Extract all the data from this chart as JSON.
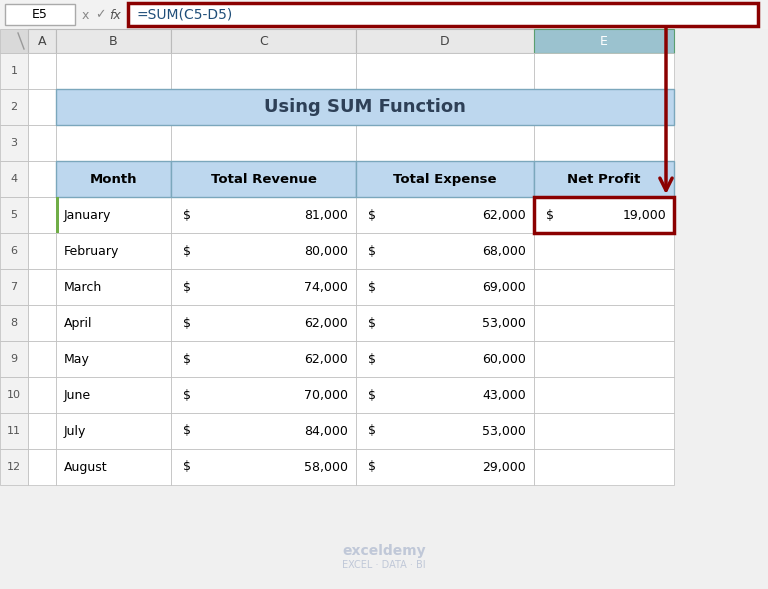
{
  "title": "Using SUM Function",
  "formula_bar_cell": "E5",
  "formula_bar_formula": "=SUM(C5-D5)",
  "headers": [
    "Month",
    "Total Revenue",
    "Total Expense",
    "Net Profit"
  ],
  "months": [
    "January",
    "February",
    "March",
    "April",
    "May",
    "June",
    "July",
    "August"
  ],
  "revenues": [
    "$",
    "$",
    "$",
    "$",
    "$",
    "$",
    "$",
    "$"
  ],
  "revenue_nums": [
    "81,000",
    "80,000",
    "74,000",
    "62,000",
    "62,000",
    "70,000",
    "84,000",
    "58,000"
  ],
  "expenses": [
    "$",
    "$",
    "$",
    "$",
    "$",
    "$",
    "$",
    "$"
  ],
  "expense_nums": [
    "62,000",
    "68,000",
    "69,000",
    "53,000",
    "60,000",
    "43,000",
    "53,000",
    "29,000"
  ],
  "net_profit_dollar": "$",
  "net_profit_num": "19,000",
  "header_bg": "#BDD7EE",
  "title_bg": "#BDD7EE",
  "highlight_cell_border": "#8B0000",
  "arrow_color": "#8B0000",
  "formula_bar_border": "#8B0000",
  "col_header_bg": "#E8E8E8",
  "active_col_header_bg": "#9BC2CF",
  "row_num_bg": "#F2F2F2",
  "bg_white": "#FFFFFF",
  "grid_color": "#BBBBBB",
  "text_color": "#000000",
  "header_text": "#2E4057",
  "watermark_color": "#C0C8D8",
  "green_bar": "#70AD47"
}
